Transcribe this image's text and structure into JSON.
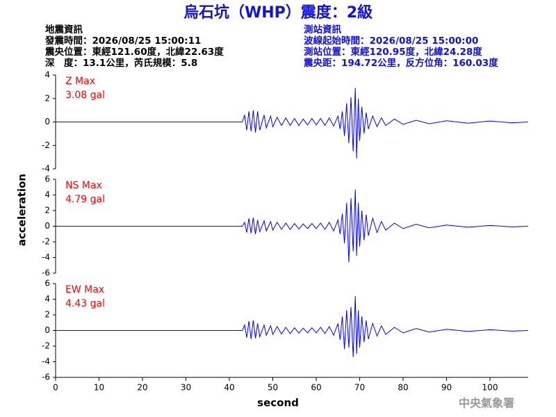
{
  "title": "烏石坑（WHP）震度：2級",
  "earthquake_info": [
    "地震資訊",
    "發震時間：2026/08/25 15:00:11",
    "震央位置：東經121.60度，北緯22.63度",
    "深　度：13.1公里，芮氏規模：5.8"
  ],
  "station_info": [
    "測站資訊",
    "波線起始時間：2026/08/25 15:00:00",
    "測站位置：東經120.95度，北緯24.28度",
    "震央距：194.72公里，反方位角：160.03度"
  ],
  "y_label": "acceleration",
  "footer": "中央氣象署",
  "chart_data": [
    {
      "type": "line",
      "label": "Z Max",
      "max_label": "3.08 gal",
      "color": "#0000ff",
      "label_color": "#ff0000",
      "xlim": [
        0,
        108.8
      ],
      "ylim": [
        -4,
        4
      ],
      "yticks": [
        -4,
        -2,
        0,
        2,
        4
      ],
      "x": [
        0,
        43,
        43.5,
        44,
        44.5,
        45,
        45.5,
        46,
        46.5,
        47,
        48,
        48.5,
        49.5,
        50,
        51,
        52,
        53,
        54,
        55,
        56,
        57,
        58,
        59,
        60,
        61,
        62,
        63,
        64,
        65,
        65.5,
        66,
        66.5,
        67,
        67.5,
        68,
        68.5,
        69,
        69.3,
        69.7,
        70,
        70.5,
        71,
        71.5,
        72,
        73,
        74,
        75,
        76,
        78,
        80,
        83,
        86,
        90,
        95,
        100,
        105,
        108.8
      ],
      "values": [
        0,
        0,
        0.6,
        -0.7,
        0.9,
        -0.8,
        1.0,
        -0.9,
        0.9,
        -0.7,
        0.6,
        -0.5,
        0.5,
        -0.4,
        0.4,
        -0.3,
        0.35,
        -0.3,
        0.3,
        -0.3,
        0.25,
        -0.25,
        0.3,
        -0.25,
        0.3,
        -0.3,
        0.35,
        -0.35,
        0.5,
        -0.6,
        0.9,
        -1.2,
        1.6,
        -1.8,
        2.1,
        -2.5,
        2.9,
        -3.1,
        2.0,
        -1.6,
        1.3,
        -1.0,
        0.8,
        -0.6,
        0.5,
        -0.4,
        0.35,
        -0.3,
        0.25,
        -0.2,
        0.15,
        -0.15,
        0.1,
        -0.1,
        0.08,
        -0.07,
        0
      ]
    },
    {
      "type": "line",
      "label": "NS Max",
      "max_label": "4.79 gal",
      "color": "#0000ff",
      "label_color": "#ff0000",
      "xlim": [
        0,
        108.8
      ],
      "ylim": [
        -6,
        6
      ],
      "yticks": [
        -6,
        -4,
        -2,
        0,
        2,
        4,
        6
      ],
      "x": [
        0,
        43,
        43.5,
        44,
        44.5,
        45,
        45.5,
        46,
        46.5,
        47,
        48,
        48.5,
        49.5,
        50,
        51,
        52,
        53,
        54,
        55,
        56,
        57,
        58,
        59,
        60,
        61,
        62,
        63,
        64,
        65,
        65.5,
        66,
        66.5,
        67,
        67.5,
        68,
        68.5,
        69,
        69.3,
        69.7,
        70,
        70.5,
        71,
        71.5,
        72,
        73,
        74,
        75,
        76,
        78,
        80,
        83,
        86,
        90,
        95,
        100,
        105,
        108.8
      ],
      "values": [
        0,
        0,
        0.5,
        -0.8,
        1.0,
        -0.9,
        1.1,
        -1.0,
        0.8,
        -0.7,
        0.7,
        -0.6,
        0.6,
        -0.5,
        0.5,
        -0.4,
        0.4,
        -0.4,
        0.35,
        -0.35,
        0.3,
        -0.3,
        0.35,
        -0.3,
        0.4,
        -0.4,
        0.5,
        -0.6,
        0.8,
        -1.0,
        1.6,
        -2.2,
        3.0,
        -4.6,
        3.6,
        -3.2,
        4.7,
        -3.8,
        3.0,
        -2.6,
        2.0,
        -1.8,
        1.5,
        -1.2,
        1.0,
        -0.8,
        0.6,
        -0.5,
        0.4,
        -0.3,
        0.25,
        -0.2,
        0.15,
        -0.12,
        0.1,
        -0.08,
        0
      ]
    },
    {
      "type": "line",
      "label": "EW Max",
      "max_label": "4.43 gal",
      "color": "#0000ff",
      "label_color": "#ff0000",
      "xlim": [
        0,
        108.8
      ],
      "ylim": [
        -6,
        6
      ],
      "yticks": [
        -6,
        -4,
        -2,
        0,
        2,
        4,
        6
      ],
      "xticks": [
        0,
        10,
        20,
        30,
        40,
        50,
        60,
        70,
        80,
        90,
        100
      ],
      "x_label": "second",
      "x": [
        0,
        43,
        43.5,
        44,
        44.5,
        45,
        45.5,
        46,
        46.5,
        47,
        48,
        48.5,
        49.5,
        50,
        51,
        52,
        53,
        54,
        55,
        56,
        57,
        58,
        59,
        60,
        61,
        62,
        63,
        64,
        65,
        65.5,
        66,
        66.5,
        67,
        67.5,
        68,
        68.5,
        69,
        69.3,
        69.7,
        70,
        70.5,
        71,
        71.5,
        72,
        73,
        74,
        75,
        76,
        78,
        80,
        83,
        86,
        90,
        95,
        100,
        105,
        108.8
      ],
      "values": [
        0,
        0,
        0.7,
        -0.9,
        1.2,
        -1.1,
        1.3,
        -1.0,
        0.9,
        -0.8,
        0.7,
        -0.6,
        0.6,
        -0.5,
        0.5,
        -0.45,
        0.4,
        -0.4,
        0.35,
        -0.35,
        0.3,
        -0.3,
        0.35,
        -0.3,
        0.4,
        -0.4,
        0.5,
        -0.6,
        0.9,
        -1.2,
        1.8,
        -2.4,
        2.6,
        -2.2,
        3.0,
        -3.4,
        4.4,
        -3.0,
        2.6,
        -2.2,
        1.8,
        -1.5,
        1.3,
        -1.1,
        0.9,
        -0.7,
        0.6,
        -0.5,
        0.4,
        -0.3,
        0.25,
        -0.2,
        0.15,
        -0.12,
        0.1,
        -0.08,
        0
      ]
    }
  ]
}
